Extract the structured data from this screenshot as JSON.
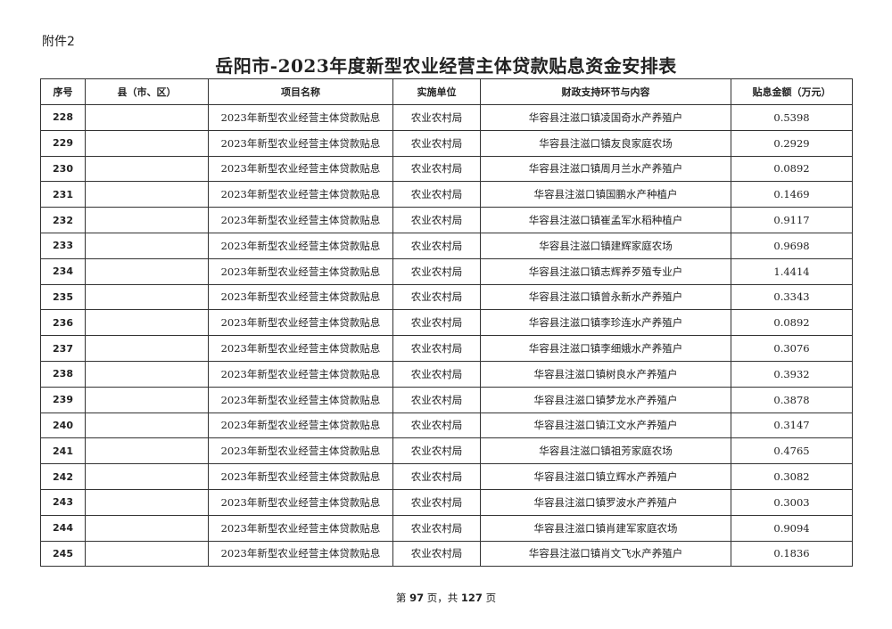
{
  "attachment_label": "附件2",
  "title": "岳阳市-2023年度新型农业经营主体贷款贴息资金安排表",
  "table": {
    "headers": [
      "序号",
      "县（市、区）",
      "项目名称",
      "实施单位",
      "财政支持环节与内容",
      "贴息金额（万元）"
    ],
    "rows": [
      {
        "no": "228",
        "county": "",
        "project": "2023年新型农业经营主体贷款贴息",
        "unit": "农业农村局",
        "content": "华容县注滋口镇凌国奇水产养殖户",
        "amount": "0.5398"
      },
      {
        "no": "229",
        "county": "",
        "project": "2023年新型农业经营主体贷款贴息",
        "unit": "农业农村局",
        "content": "华容县注滋口镇友良家庭农场",
        "amount": "0.2929"
      },
      {
        "no": "230",
        "county": "",
        "project": "2023年新型农业经营主体贷款贴息",
        "unit": "农业农村局",
        "content": "华容县注滋口镇周月兰水产养殖户",
        "amount": "0.0892"
      },
      {
        "no": "231",
        "county": "",
        "project": "2023年新型农业经营主体贷款贴息",
        "unit": "农业农村局",
        "content": "华容县注滋口镇国鹏水产种植户",
        "amount": "0.1469"
      },
      {
        "no": "232",
        "county": "",
        "project": "2023年新型农业经营主体贷款贴息",
        "unit": "农业农村局",
        "content": "华容县注滋口镇崔孟军水稻种植户",
        "amount": "0.9117"
      },
      {
        "no": "233",
        "county": "",
        "project": "2023年新型农业经营主体贷款贴息",
        "unit": "农业农村局",
        "content": "华容县注滋口镇建辉家庭农场",
        "amount": "0.9698"
      },
      {
        "no": "234",
        "county": "",
        "project": "2023年新型农业经营主体贷款贴息",
        "unit": "农业农村局",
        "content": "华容县注滋口镇志辉养歹殖专业户",
        "amount": "1.4414"
      },
      {
        "no": "235",
        "county": "",
        "project": "2023年新型农业经营主体贷款贴息",
        "unit": "农业农村局",
        "content": "华容县注滋口镇曾永新水产养殖户",
        "amount": "0.3343"
      },
      {
        "no": "236",
        "county": "",
        "project": "2023年新型农业经营主体贷款贴息",
        "unit": "农业农村局",
        "content": "华容县注滋口镇李珍连水产养殖户",
        "amount": "0.0892"
      },
      {
        "no": "237",
        "county": "",
        "project": "2023年新型农业经营主体贷款贴息",
        "unit": "农业农村局",
        "content": "华容县注滋口镇李细娥水产养殖户",
        "amount": "0.3076"
      },
      {
        "no": "238",
        "county": "",
        "project": "2023年新型农业经营主体贷款贴息",
        "unit": "农业农村局",
        "content": "华容县注滋口镇树良水产养殖户",
        "amount": "0.3932"
      },
      {
        "no": "239",
        "county": "",
        "project": "2023年新型农业经营主体贷款贴息",
        "unit": "农业农村局",
        "content": "华容县注滋口镇梦龙水产养殖户",
        "amount": "0.3878"
      },
      {
        "no": "240",
        "county": "",
        "project": "2023年新型农业经营主体贷款贴息",
        "unit": "农业农村局",
        "content": "华容县注滋口镇江文水产养殖户",
        "amount": "0.3147"
      },
      {
        "no": "241",
        "county": "",
        "project": "2023年新型农业经营主体贷款贴息",
        "unit": "农业农村局",
        "content": "华容县注滋口镇祖芳家庭农场",
        "amount": "0.4765"
      },
      {
        "no": "242",
        "county": "",
        "project": "2023年新型农业经营主体贷款贴息",
        "unit": "农业农村局",
        "content": "华容县注滋口镇立辉水产养殖户",
        "amount": "0.3082"
      },
      {
        "no": "243",
        "county": "",
        "project": "2023年新型农业经营主体贷款贴息",
        "unit": "农业农村局",
        "content": "华容县注滋口镇罗波水产养殖户",
        "amount": "0.3003"
      },
      {
        "no": "244",
        "county": "",
        "project": "2023年新型农业经营主体贷款贴息",
        "unit": "农业农村局",
        "content": "华容县注滋口镇肖建军家庭农场",
        "amount": "0.9094"
      },
      {
        "no": "245",
        "county": "",
        "project": "2023年新型农业经营主体贷款贴息",
        "unit": "农业农村局",
        "content": "华容县注滋口镇肖文飞水产养殖户",
        "amount": "0.1836"
      }
    ]
  },
  "footer": {
    "prefix": "第",
    "page": "97",
    "middle": "页，共",
    "total": "127",
    "suffix": "页"
  }
}
